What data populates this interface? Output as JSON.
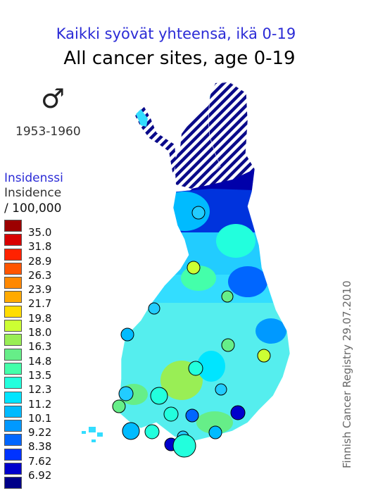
{
  "title_fi": "Kaikki syövät yhteensä, ikä 0-19",
  "title_en": "All cancer sites, age 0-19",
  "sex_symbol": "♂",
  "period": "1953-1960",
  "legend": {
    "heading_fi": "Insidenssi",
    "heading_en": "Insidence",
    "unit": "/ 100,000",
    "items": [
      {
        "label": "35.0",
        "color": "#9c0000"
      },
      {
        "label": "31.8",
        "color": "#d80000"
      },
      {
        "label": "28.9",
        "color": "#ff2200"
      },
      {
        "label": "26.3",
        "color": "#ff5500"
      },
      {
        "label": "23.9",
        "color": "#ff8800"
      },
      {
        "label": "21.7",
        "color": "#ffaa00"
      },
      {
        "label": "19.8",
        "color": "#ffdd00"
      },
      {
        "label": "18.0",
        "color": "#ccff33"
      },
      {
        "label": "16.3",
        "color": "#99ee55"
      },
      {
        "label": "14.8",
        "color": "#66ee88"
      },
      {
        "label": "13.5",
        "color": "#44ffaa"
      },
      {
        "label": "12.3",
        "color": "#22ffdd"
      },
      {
        "label": "11.2",
        "color": "#00e5ff"
      },
      {
        "label": "10.1",
        "color": "#00bbff"
      },
      {
        "label": "9.22",
        "color": "#0099ff"
      },
      {
        "label": "8.38",
        "color": "#0066ff"
      },
      {
        "label": "7.62",
        "color": "#0033ff"
      },
      {
        "label": "6.92",
        "color": "#0000cc"
      },
      {
        "label": "",
        "color": "#000088"
      }
    ]
  },
  "credit": "Finnish Cancer Registry 29.07.2010",
  "map": {
    "hatched_region": "Lapland (northern Finland)",
    "base_colors": {
      "north": "#0022bb",
      "center": "#22ccff",
      "south": "#44ddff"
    },
    "circle_colors": [
      "#22ccff",
      "#ccff33",
      "#66ee88",
      "#0066ff",
      "#0000cc",
      "#22ffdd",
      "#00bbff"
    ]
  }
}
